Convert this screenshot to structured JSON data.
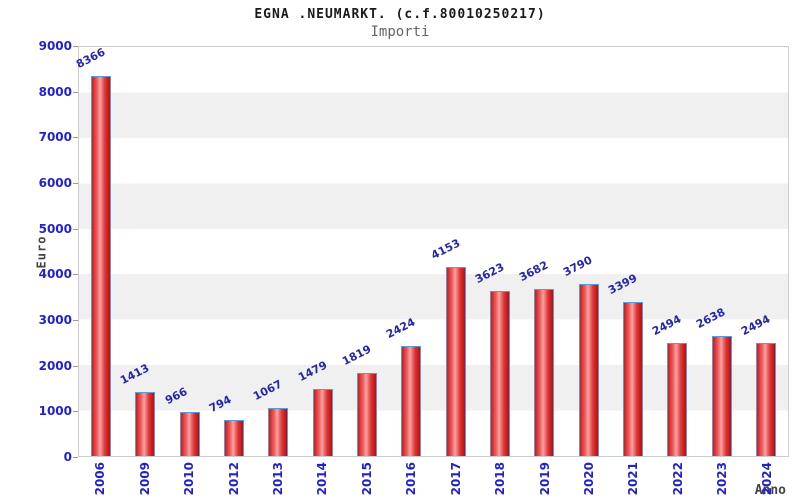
{
  "header": {
    "title": "EGNA .NEUMARKT. (c.f.80010250217)",
    "subtitle": "Importi"
  },
  "chart_data": {
    "type": "bar",
    "title": "EGNA .NEUMARKT. (c.f.80010250217)",
    "subtitle": "Importi",
    "categories": [
      "2006",
      "2009",
      "2010",
      "2012",
      "2013",
      "2014",
      "2015",
      "2016",
      "2017",
      "2018",
      "2019",
      "2020",
      "2021",
      "2022",
      "2023",
      "2024"
    ],
    "values": [
      8366,
      1413,
      966,
      794,
      1067,
      1479,
      1819,
      2424,
      4153,
      3623,
      3682,
      3790,
      3399,
      2494,
      2638,
      2494
    ],
    "xlabel": "Anno",
    "ylabel": "Euro",
    "ylim": [
      0,
      9000
    ],
    "ytick_step": 1000,
    "yticks": [
      0,
      1000,
      2000,
      3000,
      4000,
      5000,
      6000,
      7000,
      8000,
      9000
    ],
    "grid": "alternating horizontal bands",
    "legend": "none",
    "colors": {
      "bar_fill_edge": "#cc1111",
      "bar_fill_highlight": "#f8a3a3",
      "bar_border": "#5a9bd5",
      "tick_label": "#2222cc",
      "value_label": "#2626ab",
      "band_gray": "#f0f0f0",
      "plot_border": "#cccccc",
      "axis_title": "#444444"
    }
  }
}
